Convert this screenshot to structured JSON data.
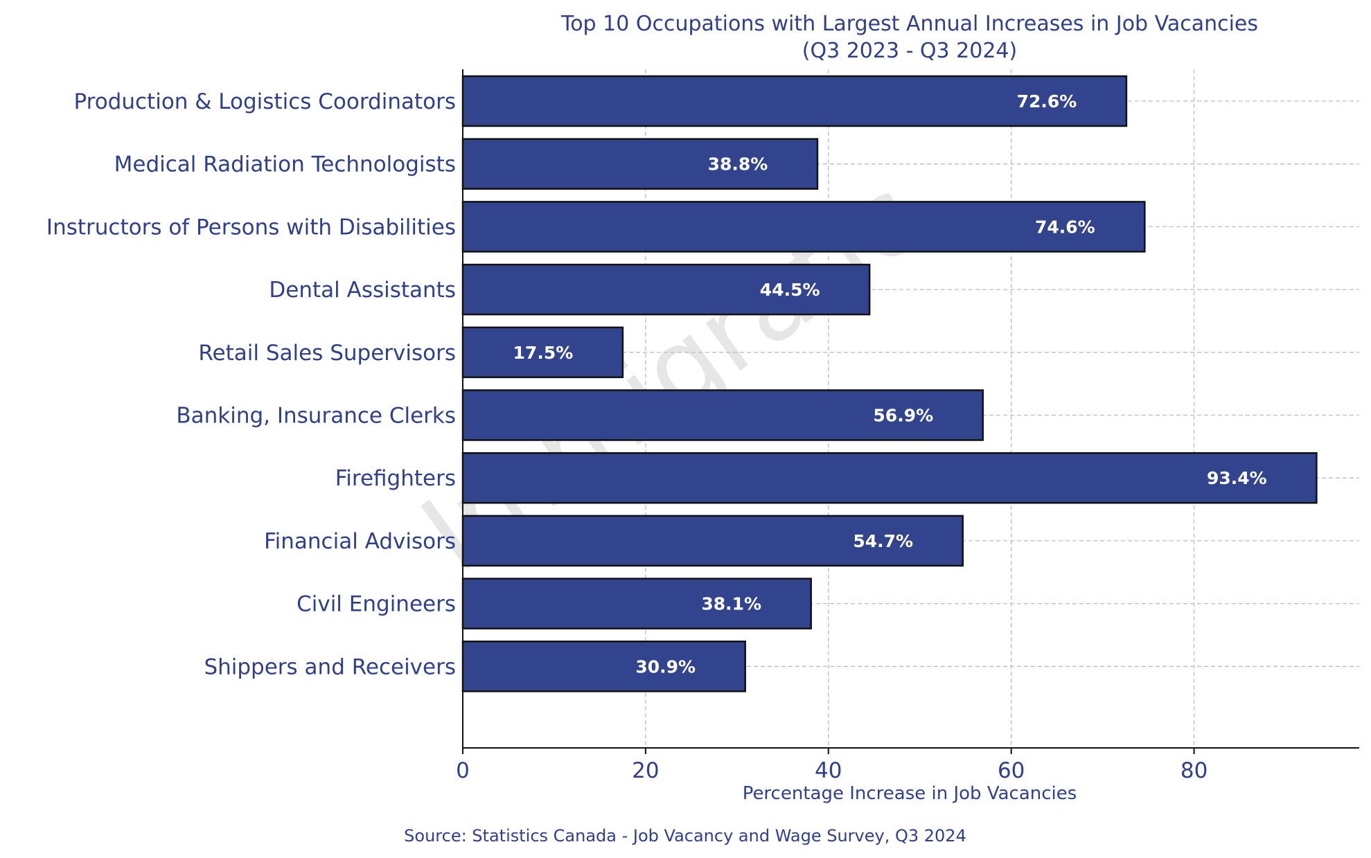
{
  "chart_data": {
    "type": "bar",
    "orientation": "horizontal",
    "title": "Top 10 Occupations with Largest Annual Increases in Job Vacancies",
    "subtitle": "(Q3 2023 - Q3 2024)",
    "xlabel": "Percentage Increase in Job Vacancies",
    "ylabel": "",
    "categories": [
      "Production & Logistics Coordinators",
      "Medical Radiation Technologists",
      "Instructors of Persons with Disabilities",
      "Dental Assistants",
      "Retail Sales Supervisors",
      "Banking, Insurance Clerks",
      "Firefighters",
      "Financial Advisors",
      "Civil Engineers",
      "Shippers and Receivers"
    ],
    "values": [
      72.6,
      38.8,
      74.6,
      44.5,
      17.5,
      56.9,
      93.4,
      54.7,
      38.1,
      30.9
    ],
    "data_labels": [
      "72.6%",
      "38.8%",
      "74.6%",
      "44.5%",
      "17.5%",
      "56.9%",
      "93.4%",
      "54.7%",
      "38.1%",
      "30.9%"
    ],
    "xlim": [
      0,
      98.07
    ],
    "xticks": [
      0,
      20,
      40,
      60,
      80
    ],
    "xtick_labels": [
      "0",
      "20",
      "40",
      "60",
      "80"
    ],
    "grid": true,
    "legend": "none",
    "source": "Source: Statistics Canada - Job Vacancy and Wage Survey, Q3 2024",
    "watermark": "Immigratic",
    "colors": {
      "bar": "#33448f",
      "bar_edge": "#111111",
      "text": "#2f3f8f",
      "data_label": "#ffffff",
      "grid": "#bdbdbd",
      "axis": "#111111",
      "watermark": "#e6e6e6"
    }
  }
}
